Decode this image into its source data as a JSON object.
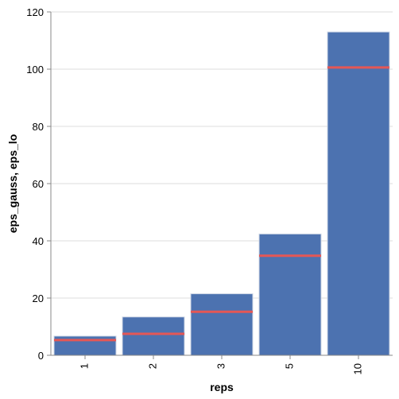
{
  "chart_data": {
    "type": "bar",
    "xlabel": "reps",
    "ylabel": "eps_gauss, eps_lo",
    "categories": [
      "1",
      "2",
      "3",
      "5",
      "10"
    ],
    "series": [
      {
        "name": "eps_gauss",
        "mark": "bar",
        "values": [
          6.7,
          13.4,
          21.5,
          42.4,
          113.0
        ]
      },
      {
        "name": "eps_lo",
        "mark": "tick",
        "values": [
          5.3,
          7.5,
          15.2,
          34.8,
          100.6
        ]
      }
    ],
    "ylim": [
      0,
      120
    ],
    "yticks": [
      0,
      20,
      40,
      60,
      80,
      100,
      120
    ],
    "grid": true,
    "colors": {
      "bar": "#4c72b0",
      "rule": "#e45756",
      "grid": "#dddddd",
      "axis": "#888888"
    }
  }
}
